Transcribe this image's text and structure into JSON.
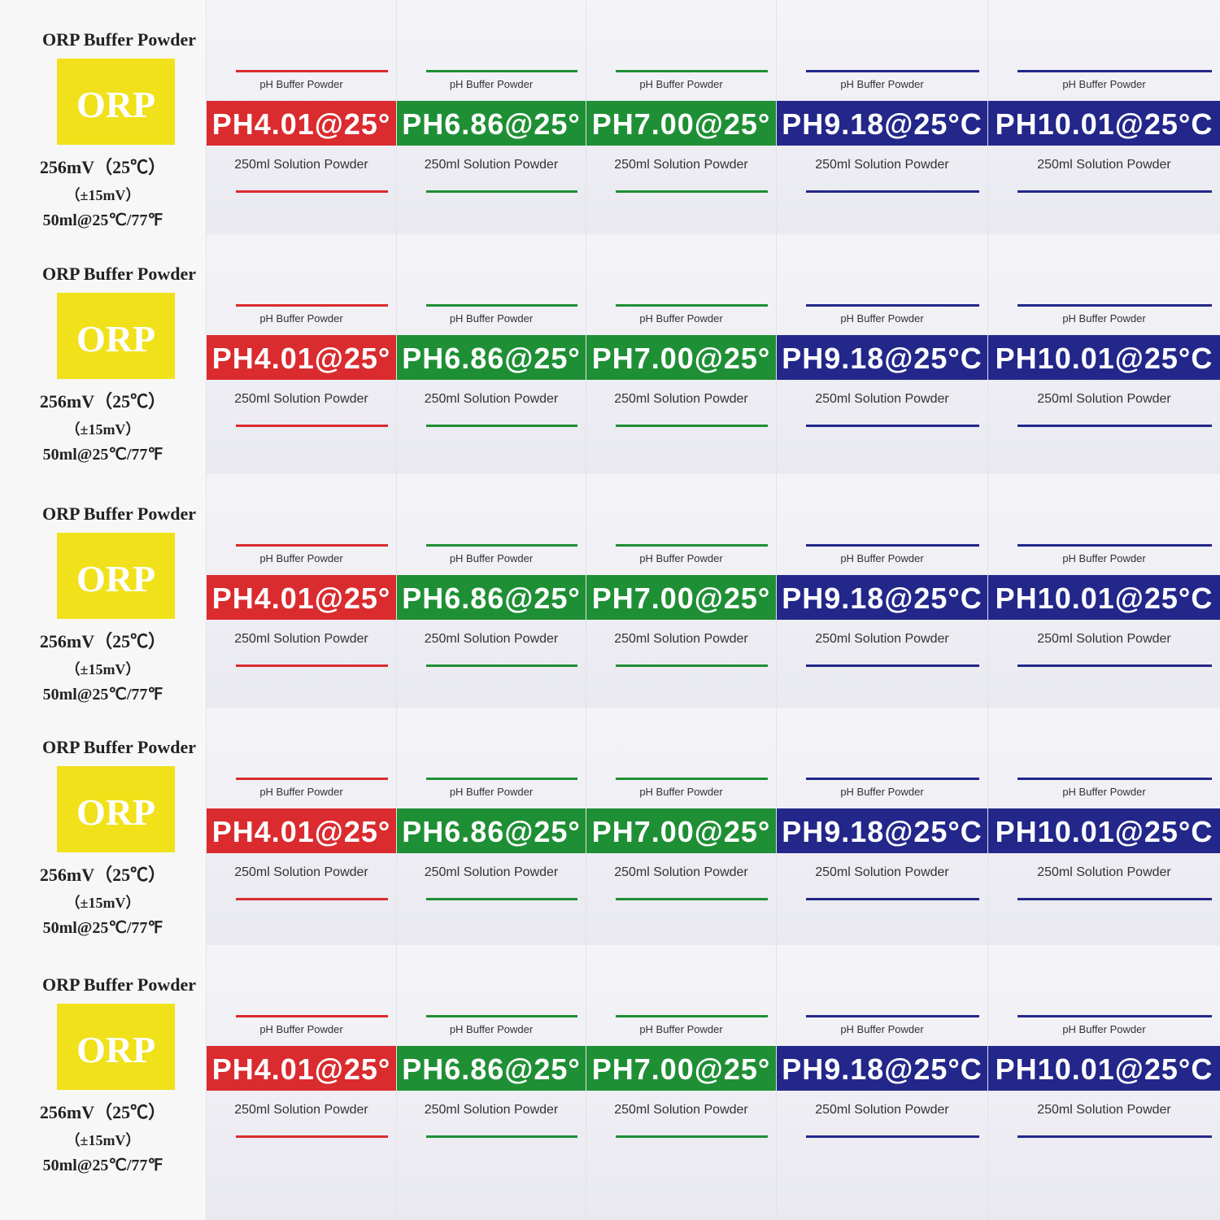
{
  "rows": [
    {
      "orp": {
        "title": "ORP Buffer Powder",
        "badge": "ORP",
        "potential": "256mV（25℃）",
        "tolerance": "（±15mV）",
        "volume": "50ml@25℃/77℉",
        "color": "#f0e11a"
      },
      "packets": [
        {
          "label": "pH Buffer Powder",
          "value": "PH4.01@25°",
          "note": "250ml Solution Powder",
          "color": "#da2b2f"
        },
        {
          "label": "pH Buffer Powder",
          "value": "PH6.86@25°",
          "note": "250ml Solution Powder",
          "color": "#1f8f35"
        },
        {
          "label": "pH Buffer Powder",
          "value": "PH7.00@25°",
          "note": "250ml Solution Powder",
          "color": "#1f8f35"
        },
        {
          "label": "pH Buffer Powder",
          "value": "PH9.18@25°C",
          "note": "250ml Solution Powder",
          "color": "#23278a"
        },
        {
          "label": "pH Buffer Powder",
          "value": "PH10.01@25°C",
          "note": "250ml Solution Powder",
          "color": "#23278a"
        }
      ]
    },
    {
      "orp": {
        "title": "ORP Buffer Powder",
        "badge": "ORP",
        "potential": "256mV（25℃）",
        "tolerance": "（±15mV）",
        "volume": "50ml@25℃/77℉",
        "color": "#f0e11a"
      },
      "packets": [
        {
          "label": "pH Buffer Powder",
          "value": "PH4.01@25°",
          "note": "250ml Solution Powder",
          "color": "#da2b2f"
        },
        {
          "label": "pH Buffer Powder",
          "value": "PH6.86@25°",
          "note": "250ml Solution Powder",
          "color": "#1f8f35"
        },
        {
          "label": "pH Buffer Powder",
          "value": "PH7.00@25°",
          "note": "250ml Solution Powder",
          "color": "#1f8f35"
        },
        {
          "label": "pH Buffer Powder",
          "value": "PH9.18@25°C",
          "note": "250ml Solution Powder",
          "color": "#23278a"
        },
        {
          "label": "pH Buffer Powder",
          "value": "PH10.01@25°C",
          "note": "250ml Solution Powder",
          "color": "#23278a"
        }
      ]
    },
    {
      "orp": {
        "title": "ORP Buffer Powder",
        "badge": "ORP",
        "potential": "256mV（25℃）",
        "tolerance": "（±15mV）",
        "volume": "50ml@25℃/77℉",
        "color": "#f0e11a"
      },
      "packets": [
        {
          "label": "pH Buffer Powder",
          "value": "PH4.01@25°",
          "note": "250ml Solution Powder",
          "color": "#da2b2f"
        },
        {
          "label": "pH Buffer Powder",
          "value": "PH6.86@25°",
          "note": "250ml Solution Powder",
          "color": "#1f8f35"
        },
        {
          "label": "pH Buffer Powder",
          "value": "PH7.00@25°",
          "note": "250ml Solution Powder",
          "color": "#1f8f35"
        },
        {
          "label": "pH Buffer Powder",
          "value": "PH9.18@25°C",
          "note": "250ml Solution Powder",
          "color": "#23278a"
        },
        {
          "label": "pH Buffer Powder",
          "value": "PH10.01@25°C",
          "note": "250ml Solution Powder",
          "color": "#23278a"
        }
      ]
    },
    {
      "orp": {
        "title": "ORP Buffer Powder",
        "badge": "ORP",
        "potential": "256mV（25℃）",
        "tolerance": "（±15mV）",
        "volume": "50ml@25℃/77℉",
        "color": "#f0e11a"
      },
      "packets": [
        {
          "label": "pH Buffer Powder",
          "value": "PH4.01@25°",
          "note": "250ml Solution Powder",
          "color": "#da2b2f"
        },
        {
          "label": "pH Buffer Powder",
          "value": "PH6.86@25°",
          "note": "250ml Solution Powder",
          "color": "#1f8f35"
        },
        {
          "label": "pH Buffer Powder",
          "value": "PH7.00@25°",
          "note": "250ml Solution Powder",
          "color": "#1f8f35"
        },
        {
          "label": "pH Buffer Powder",
          "value": "PH9.18@25°C",
          "note": "250ml Solution Powder",
          "color": "#23278a"
        },
        {
          "label": "pH Buffer Powder",
          "value": "PH10.01@25°C",
          "note": "250ml Solution Powder",
          "color": "#23278a"
        }
      ]
    },
    {
      "orp": {
        "title": "ORP Buffer Powder",
        "badge": "ORP",
        "potential": "256mV（25℃）",
        "tolerance": "（±15mV）",
        "volume": "50ml@25℃/77℉",
        "color": "#f0e11a"
      },
      "packets": [
        {
          "label": "pH Buffer Powder",
          "value": "PH4.01@25°",
          "note": "250ml Solution Powder",
          "color": "#da2b2f"
        },
        {
          "label": "pH Buffer Powder",
          "value": "PH6.86@25°",
          "note": "250ml Solution Powder",
          "color": "#1f8f35"
        },
        {
          "label": "pH Buffer Powder",
          "value": "PH7.00@25°",
          "note": "250ml Solution Powder",
          "color": "#1f8f35"
        },
        {
          "label": "pH Buffer Powder",
          "value": "PH9.18@25°C",
          "note": "250ml Solution Powder",
          "color": "#23278a"
        },
        {
          "label": "pH Buffer Powder",
          "value": "PH10.01@25°C",
          "note": "250ml Solution Powder",
          "color": "#23278a"
        }
      ]
    }
  ]
}
